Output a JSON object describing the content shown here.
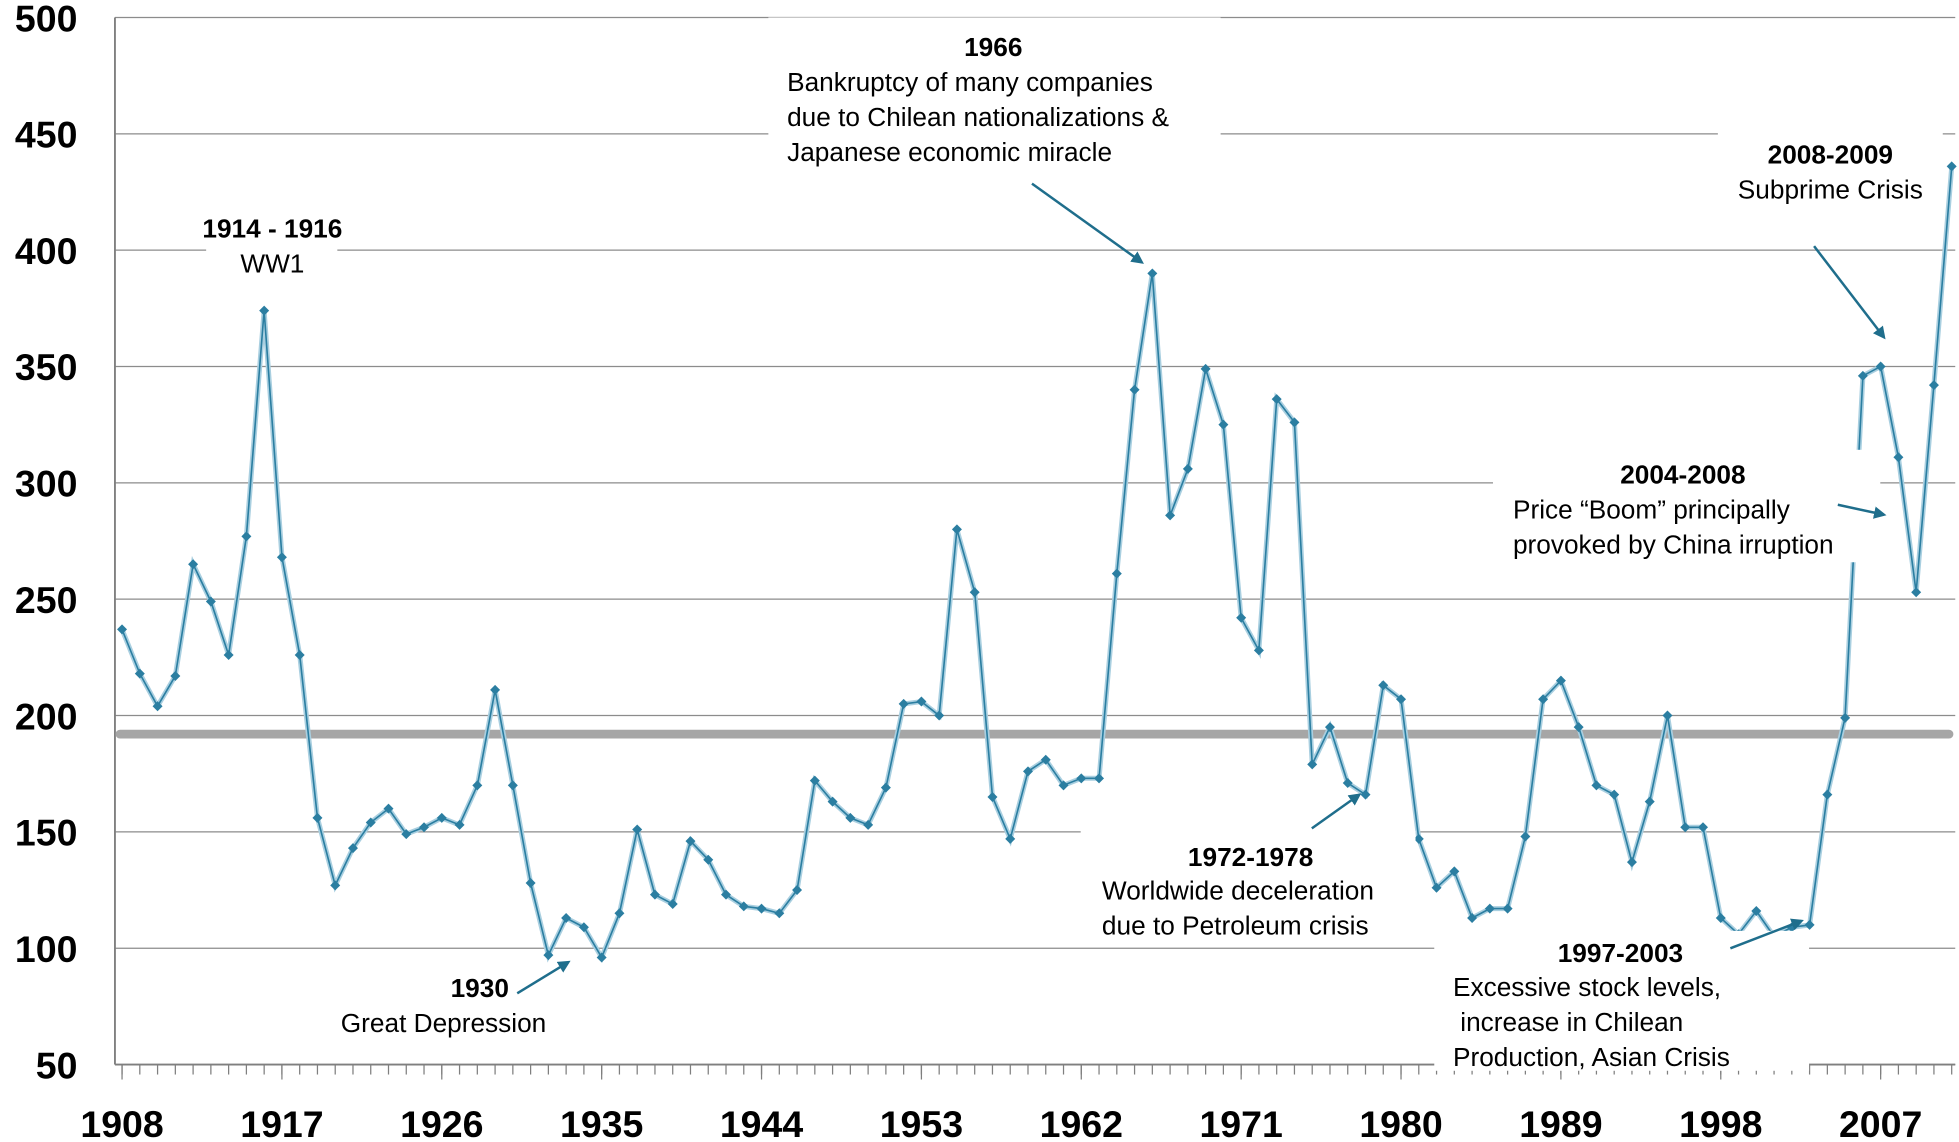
{
  "chart_data": {
    "type": "line",
    "x": [
      1908,
      1909,
      1910,
      1911,
      1912,
      1913,
      1914,
      1915,
      1916,
      1917,
      1918,
      1919,
      1920,
      1921,
      1922,
      1923,
      1924,
      1925,
      1926,
      1927,
      1928,
      1929,
      1930,
      1931,
      1932,
      1933,
      1934,
      1935,
      1936,
      1937,
      1938,
      1939,
      1940,
      1941,
      1942,
      1943,
      1944,
      1945,
      1946,
      1947,
      1948,
      1949,
      1950,
      1951,
      1952,
      1953,
      1954,
      1955,
      1956,
      1957,
      1958,
      1959,
      1960,
      1961,
      1962,
      1963,
      1964,
      1965,
      1966,
      1967,
      1968,
      1969,
      1970,
      1971,
      1972,
      1973,
      1974,
      1975,
      1976,
      1977,
      1978,
      1979,
      1980,
      1981,
      1982,
      1983,
      1984,
      1985,
      1986,
      1987,
      1988,
      1989,
      1990,
      1991,
      1992,
      1993,
      1994,
      1995,
      1996,
      1997,
      1998,
      1999,
      2000,
      2001,
      2002,
      2003,
      2004,
      2005,
      2006,
      2007,
      2008,
      2009,
      2010,
      2011
    ],
    "values": [
      237,
      218,
      204,
      217,
      265,
      249,
      226,
      277,
      374,
      268,
      226,
      156,
      127,
      143,
      154,
      160,
      149,
      152,
      156,
      153,
      170,
      211,
      170,
      128,
      97,
      113,
      109,
      96,
      115,
      151,
      123,
      119,
      146,
      138,
      123,
      118,
      117,
      115,
      125,
      172,
      163,
      156,
      153,
      169,
      205,
      206,
      200,
      280,
      253,
      165,
      147,
      176,
      181,
      170,
      173,
      173,
      261,
      340,
      390,
      286,
      306,
      349,
      325,
      242,
      228,
      336,
      326,
      179,
      195,
      171,
      166,
      213,
      207,
      147,
      126,
      133,
      113,
      117,
      117,
      148,
      207,
      215,
      195,
      170,
      166,
      137,
      163,
      200,
      152,
      152,
      113,
      106,
      116,
      105,
      109,
      110,
      166,
      199,
      346,
      350,
      311,
      253,
      342,
      436
    ],
    "color": "#2b7ea1",
    "reference_line": 192,
    "reference_color": "#a6a6a6",
    "xlim": [
      1907.6,
      2011.2
    ],
    "xticks": [
      1908,
      1917,
      1926,
      1935,
      1944,
      1953,
      1962,
      1971,
      1980,
      1989,
      1998,
      2007
    ],
    "ylim": [
      50,
      500
    ],
    "yticks": [
      50,
      100,
      150,
      200,
      250,
      300,
      350,
      400,
      450,
      500
    ],
    "grid": true,
    "annotations": [
      {
        "title": "1914 - 1916",
        "lines": [
          "WW1"
        ]
      },
      {
        "title": "1966",
        "lines": [
          "Bankruptcy of many companies",
          "due to Chilean nationalizations &",
          "Japanese economic miracle"
        ]
      },
      {
        "title": "2008-2009",
        "lines": [
          "Subprime Crisis"
        ]
      },
      {
        "title": "2004-2008",
        "lines": [
          "Price “Boom” principally",
          "provoked by China irruption"
        ]
      },
      {
        "title": "1972-1978",
        "lines": [
          "Worldwide deceleration",
          "due to Petroleum crisis"
        ]
      },
      {
        "title": "1997-2003",
        "lines": [
          "Excessive stock levels,",
          " increase in Chilean",
          "Production, Asian Crisis"
        ]
      },
      {
        "title": "1930",
        "lines": [
          "Great Depression"
        ]
      }
    ]
  }
}
